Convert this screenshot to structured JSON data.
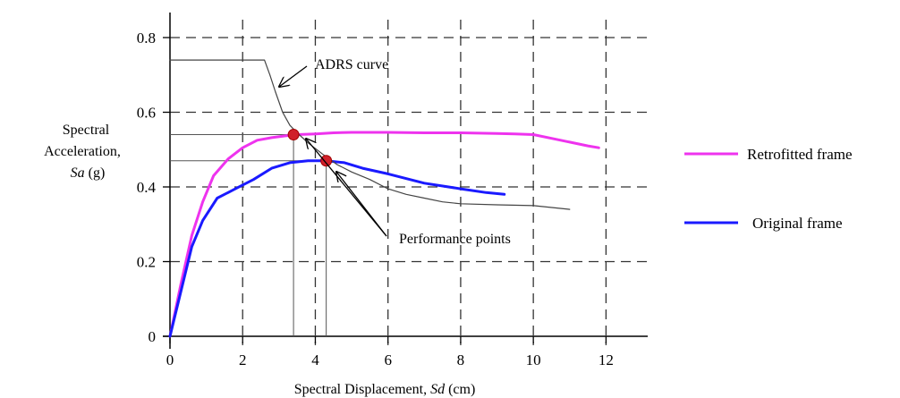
{
  "chart_data": {
    "type": "line",
    "xlabel": "Spectral Displacement, Sd (cm)",
    "xlabel_parts": [
      "Spectral Displacement, ",
      "Sd",
      " (cm)"
    ],
    "ylabel_lines": [
      "Spectral",
      "Acceleration,"
    ],
    "ylabel_last_parts": [
      "Sa",
      " (g)"
    ],
    "xlim": [
      0,
      13
    ],
    "ylim": [
      0,
      0.8
    ],
    "x_ticks": [
      0,
      2,
      4,
      6,
      8,
      10,
      12
    ],
    "y_ticks": [
      0,
      0.2,
      0.4,
      0.6,
      0.8
    ],
    "x_tick_labels": [
      "0",
      "2",
      "4",
      "6",
      "8",
      "10",
      "12"
    ],
    "y_tick_labels": [
      "0",
      "0.2",
      "0.4",
      "0.6",
      "0.8"
    ],
    "grid": true,
    "grid_style": "dashed",
    "legend_position": "right",
    "series": [
      {
        "name": "Retrofitted frame",
        "color": "#ee33ee",
        "x": [
          0,
          0.3,
          0.6,
          0.9,
          1.2,
          1.6,
          2.0,
          2.4,
          2.8,
          3.2,
          3.5,
          4.0,
          4.5,
          5.0,
          6.0,
          7.0,
          8.0,
          9.0,
          9.5,
          10.0,
          10.5,
          11.0,
          11.5,
          11.8
        ],
        "y": [
          0,
          0.14,
          0.27,
          0.36,
          0.43,
          0.475,
          0.505,
          0.525,
          0.532,
          0.537,
          0.54,
          0.542,
          0.545,
          0.546,
          0.546,
          0.545,
          0.545,
          0.543,
          0.542,
          0.54,
          0.53,
          0.52,
          0.51,
          0.505
        ]
      },
      {
        "name": "Original frame",
        "color": "#1a1aff",
        "x": [
          0,
          0.3,
          0.6,
          0.9,
          1.3,
          1.8,
          2.3,
          2.8,
          3.3,
          3.8,
          4.3,
          4.8,
          5.3,
          6.0,
          7.0,
          8.0,
          8.7,
          9.2
        ],
        "y": [
          0,
          0.12,
          0.24,
          0.31,
          0.37,
          0.395,
          0.42,
          0.45,
          0.465,
          0.47,
          0.47,
          0.465,
          0.45,
          0.435,
          0.41,
          0.395,
          0.385,
          0.38
        ]
      },
      {
        "name": "ADRS curve",
        "color": "#444444",
        "x": [
          0,
          2.6,
          2.75,
          2.9,
          3.1,
          3.3,
          3.5,
          3.8,
          4.2,
          4.6,
          5.0,
          5.5,
          6.0,
          6.5,
          7.0,
          7.5,
          8.0,
          9.0,
          10.0,
          11.0
        ],
        "y": [
          0.74,
          0.74,
          0.7,
          0.655,
          0.6,
          0.565,
          0.545,
          0.518,
          0.488,
          0.46,
          0.44,
          0.42,
          0.395,
          0.38,
          0.37,
          0.36,
          0.355,
          0.352,
          0.35,
          0.34
        ]
      }
    ],
    "performance_points": [
      {
        "x": 3.4,
        "y": 0.54
      },
      {
        "x": 4.3,
        "y": 0.47
      }
    ],
    "annotations": {
      "adrs": "ADRS curve",
      "performance": "Performance points"
    }
  }
}
